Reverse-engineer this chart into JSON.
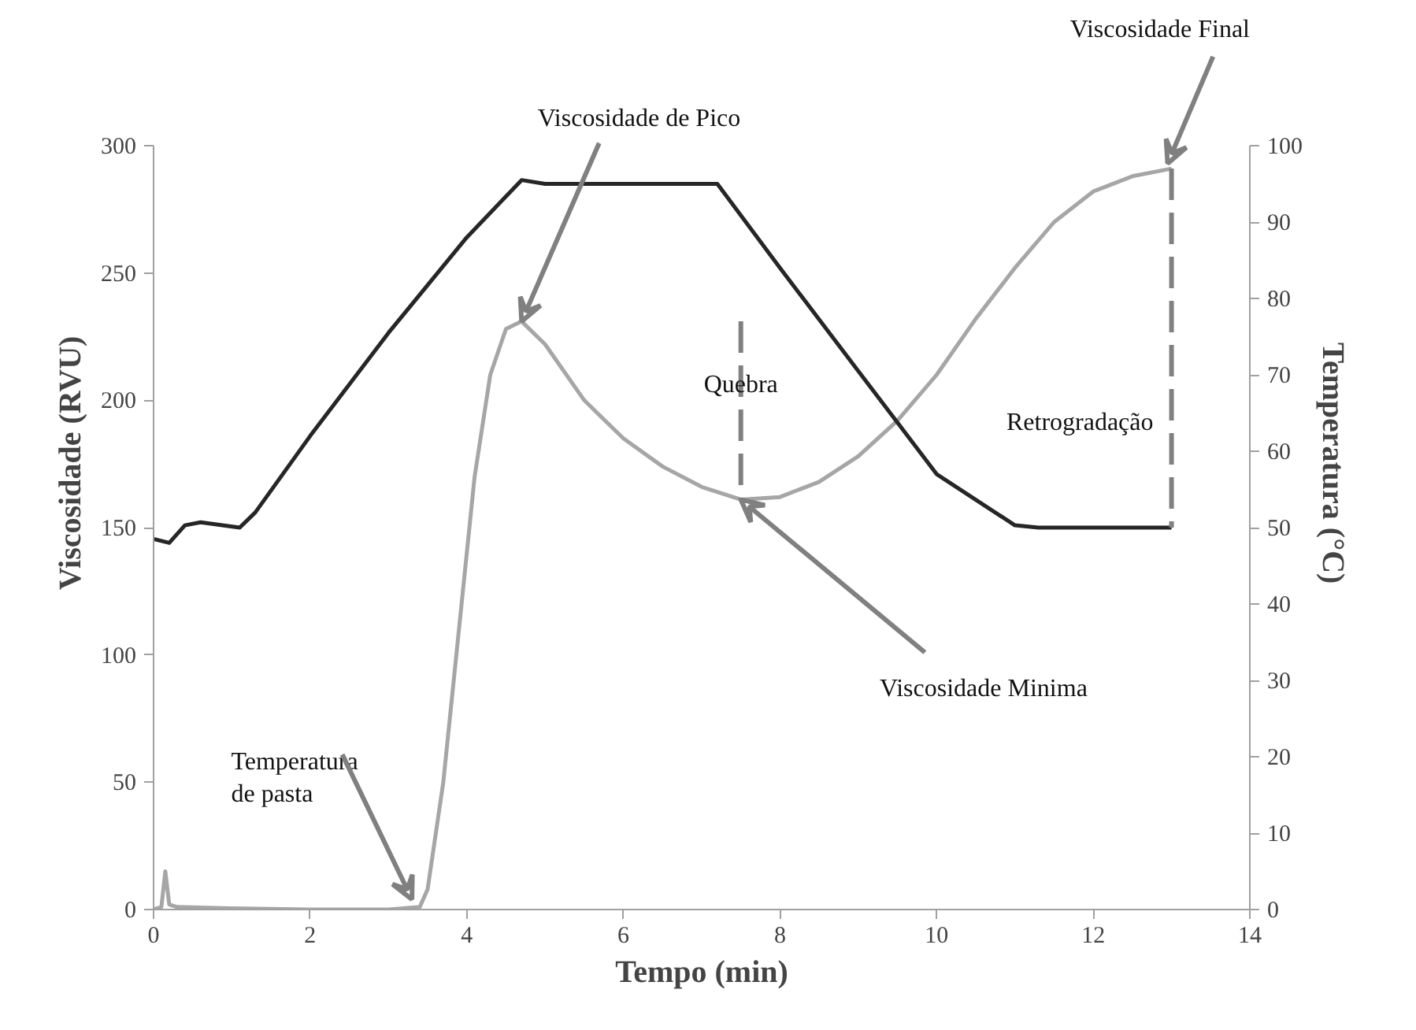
{
  "chart_data": {
    "type": "line",
    "xlabel": "Tempo (min)",
    "ylabel": "Viscosidade (RVU)",
    "y2label": "Temperatura (°C)",
    "xlim": [
      0,
      14
    ],
    "xticks": [
      0,
      2,
      4,
      6,
      8,
      10,
      12,
      14
    ],
    "ylim": [
      0,
      300
    ],
    "yticks": [
      0,
      50,
      100,
      150,
      200,
      250,
      300
    ],
    "y2lim": [
      0,
      100
    ],
    "y2ticks": [
      0,
      10,
      20,
      30,
      40,
      50,
      60,
      70,
      80,
      90,
      100
    ],
    "grid": false,
    "marker": "none",
    "series": [
      {
        "color": "#a6a6a6",
        "x": [
          0,
          0.1,
          0.15,
          0.2,
          0.3,
          1,
          2,
          3,
          3.4,
          3.5,
          3.7,
          3.9,
          4.1,
          4.3,
          4.5,
          4.7,
          5,
          5.5,
          6,
          6.5,
          7,
          7.5,
          8,
          8.5,
          9,
          9.5,
          10,
          10.5,
          11,
          11.5,
          12,
          12.5,
          13
        ],
        "values": [
          0,
          1,
          15,
          2,
          1,
          0.5,
          0,
          0,
          1,
          8,
          50,
          110,
          170,
          210,
          228,
          231,
          222,
          200,
          185,
          174,
          166,
          161,
          162,
          168,
          178,
          192,
          210,
          232,
          252,
          270,
          282,
          288,
          291
        ]
      },
      {
        "color": "#262626",
        "axis": "y2",
        "x": [
          0,
          0.2,
          0.4,
          0.6,
          1.1,
          1.3,
          2,
          3,
          4,
          4.7,
          5,
          7,
          7.2,
          8,
          9,
          10,
          11,
          11.3,
          13
        ],
        "values": [
          48.5,
          48,
          50.3,
          50.7,
          50,
          52,
          62,
          75.5,
          88,
          95.5,
          95,
          95,
          95,
          84,
          70.5,
          57,
          50.3,
          50,
          50
        ]
      },
      {
        "color": "#808080",
        "line_style": "dashed",
        "x": [
          7.5,
          7.5
        ],
        "values": [
          231,
          161
        ]
      },
      {
        "color": "#808080",
        "line_style": "dashed",
        "x": [
          13,
          13
        ],
        "values": [
          291,
          150
        ]
      }
    ],
    "annotations": [
      {
        "text": "Viscosidade de Pico",
        "x": 4.7,
        "y": 231
      },
      {
        "text": "Viscosidade Final",
        "x": 12.95,
        "y": 293
      },
      {
        "text": "Quebra",
        "x": 7.5,
        "y": 196
      },
      {
        "text": "Retrogradação",
        "x": 13,
        "y": 220
      },
      {
        "text": "Viscosidade Minima",
        "x": 7.5,
        "y": 161
      },
      {
        "text": "Temperatura\nde pasta",
        "x": 3.3,
        "y": 4
      }
    ]
  }
}
